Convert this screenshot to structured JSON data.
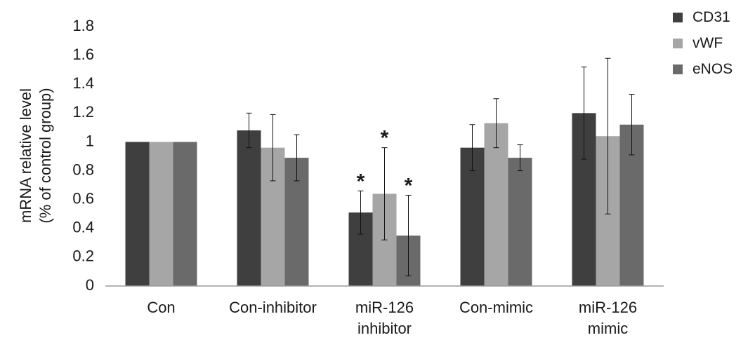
{
  "chart_data": {
    "type": "bar",
    "ylabel": [
      "mRNA relative level",
      "(% of control group)"
    ],
    "xlabel": "",
    "ylim": [
      0,
      1.8
    ],
    "yticks": [
      0,
      0.2,
      0.4,
      0.6,
      0.8,
      1,
      1.2,
      1.4,
      1.6,
      1.8
    ],
    "ytick_labels": [
      "0",
      "0.2",
      "0.4",
      "0.6",
      "0.8",
      "1",
      "1.2",
      "1.4",
      "1.6",
      "1.8"
    ],
    "categories": [
      [
        "Con"
      ],
      [
        "Con-inhibitor"
      ],
      [
        "miR-126",
        "inhibitor"
      ],
      [
        "Con-mimic"
      ],
      [
        "miR-126",
        "mimic"
      ]
    ],
    "series": [
      {
        "name": "CD31",
        "color": "#3f3f3f",
        "values": [
          1.0,
          1.08,
          0.51,
          0.96,
          1.2
        ],
        "errors": [
          0.0,
          0.12,
          0.15,
          0.16,
          0.32
        ],
        "significant": [
          false,
          false,
          true,
          false,
          false
        ]
      },
      {
        "name": "vWF",
        "color": "#a6a6a6",
        "values": [
          1.0,
          0.96,
          0.64,
          1.13,
          1.04
        ],
        "errors": [
          0.0,
          0.23,
          0.32,
          0.17,
          0.54
        ],
        "significant": [
          false,
          false,
          true,
          false,
          false
        ]
      },
      {
        "name": "eNOS",
        "color": "#6a6a6a",
        "values": [
          1.0,
          0.89,
          0.35,
          0.89,
          1.12
        ],
        "errors": [
          0.0,
          0.16,
          0.28,
          0.09,
          0.21
        ],
        "significant": [
          false,
          false,
          true,
          false,
          false
        ]
      }
    ],
    "significance_marker": "*",
    "legend_position": "top-right",
    "grid": false
  }
}
